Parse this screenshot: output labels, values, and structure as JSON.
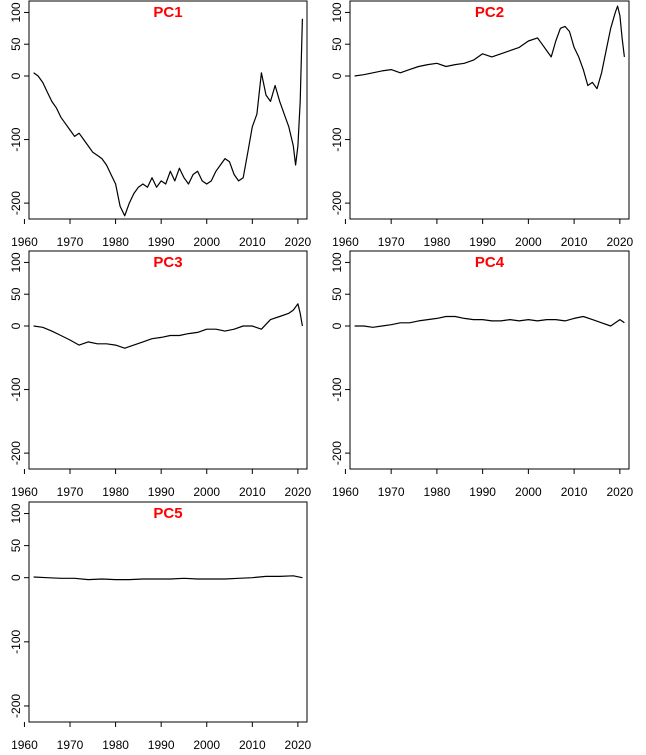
{
  "panel_title_color": "#ff0000",
  "line_color": "#000000",
  "chart_data": [
    {
      "type": "line",
      "title": "PC1",
      "xlabel": "",
      "ylabel": "",
      "xlim": [
        1961,
        2022
      ],
      "ylim": [
        -225,
        118
      ],
      "xticks": [
        1960,
        1970,
        1980,
        1990,
        2000,
        2010,
        2020
      ],
      "yticks": [
        100,
        50,
        0,
        -100,
        -200
      ],
      "grid": false,
      "series": [
        {
          "x": [
            1962,
            1963,
            1964,
            1965,
            1966,
            1967,
            1968,
            1969,
            1970,
            1971,
            1972,
            1973,
            1974,
            1975,
            1976,
            1977,
            1978,
            1979,
            1980,
            1981,
            1982,
            1983,
            1984,
            1985,
            1986,
            1987,
            1988,
            1989,
            1990,
            1991,
            1992,
            1993,
            1994,
            1995,
            1996,
            1997,
            1998,
            1999,
            2000,
            2001,
            2002,
            2003,
            2004,
            2005,
            2006,
            2007,
            2008,
            2009,
            2010,
            2011,
            2012,
            2013,
            2014,
            2015,
            2016,
            2017,
            2018,
            2019,
            2019.5,
            2020,
            2020.5,
            2021
          ],
          "y": [
            5,
            0,
            -10,
            -25,
            -40,
            -50,
            -65,
            -75,
            -85,
            -95,
            -90,
            -100,
            -110,
            -120,
            -125,
            -130,
            -140,
            -155,
            -170,
            -205,
            -220,
            -200,
            -185,
            -175,
            -170,
            -175,
            -160,
            -175,
            -165,
            -170,
            -150,
            -165,
            -145,
            -160,
            -170,
            -155,
            -150,
            -165,
            -170,
            -165,
            -150,
            -140,
            -130,
            -135,
            -155,
            -165,
            -160,
            -120,
            -80,
            -60,
            5,
            -30,
            -40,
            -15,
            -40,
            -60,
            -80,
            -110,
            -140,
            -110,
            -40,
            90
          ]
        }
      ]
    },
    {
      "type": "line",
      "title": "PC2",
      "xlabel": "",
      "ylabel": "",
      "xlim": [
        1961,
        2022
      ],
      "ylim": [
        -225,
        118
      ],
      "xticks": [
        1960,
        1970,
        1980,
        1990,
        2000,
        2010,
        2020
      ],
      "yticks": [
        100,
        50,
        0,
        -100,
        -200
      ],
      "grid": false,
      "series": [
        {
          "x": [
            1962,
            1964,
            1966,
            1968,
            1970,
            1972,
            1974,
            1976,
            1978,
            1980,
            1982,
            1984,
            1986,
            1988,
            1990,
            1992,
            1994,
            1996,
            1998,
            2000,
            2002,
            2003,
            2004,
            2005,
            2006,
            2007,
            2008,
            2009,
            2010,
            2011,
            2012,
            2013,
            2014,
            2015,
            2016,
            2017,
            2018,
            2019,
            2019.5,
            2020,
            2020.5,
            2021
          ],
          "y": [
            0,
            2,
            5,
            8,
            10,
            5,
            10,
            15,
            18,
            20,
            15,
            18,
            20,
            25,
            35,
            30,
            35,
            40,
            45,
            55,
            60,
            50,
            40,
            30,
            55,
            75,
            78,
            70,
            45,
            30,
            10,
            -15,
            -10,
            -20,
            5,
            40,
            75,
            100,
            110,
            95,
            60,
            30
          ]
        }
      ]
    },
    {
      "type": "line",
      "title": "PC3",
      "xlabel": "",
      "ylabel": "",
      "xlim": [
        1961,
        2022
      ],
      "ylim": [
        -225,
        118
      ],
      "xticks": [
        1960,
        1970,
        1980,
        1990,
        2000,
        2010,
        2020
      ],
      "yticks": [
        100,
        50,
        0,
        -100,
        -200
      ],
      "grid": false,
      "series": [
        {
          "x": [
            1962,
            1964,
            1966,
            1968,
            1970,
            1972,
            1974,
            1976,
            1978,
            1980,
            1982,
            1984,
            1986,
            1988,
            1990,
            1992,
            1994,
            1996,
            1998,
            2000,
            2002,
            2004,
            2006,
            2008,
            2010,
            2012,
            2014,
            2016,
            2018,
            2019,
            2020,
            2020.5,
            2021
          ],
          "y": [
            0,
            -2,
            -8,
            -15,
            -22,
            -30,
            -25,
            -28,
            -28,
            -30,
            -35,
            -30,
            -25,
            -20,
            -18,
            -15,
            -15,
            -12,
            -10,
            -5,
            -5,
            -8,
            -5,
            0,
            0,
            -5,
            10,
            15,
            20,
            25,
            35,
            20,
            0
          ]
        }
      ]
    },
    {
      "type": "line",
      "title": "PC4",
      "xlabel": "",
      "ylabel": "",
      "xlim": [
        1961,
        2022
      ],
      "ylim": [
        -225,
        118
      ],
      "xticks": [
        1960,
        1970,
        1980,
        1990,
        2000,
        2010,
        2020
      ],
      "yticks": [
        100,
        50,
        0,
        -100,
        -200
      ],
      "grid": false,
      "series": [
        {
          "x": [
            1962,
            1964,
            1966,
            1968,
            1970,
            1972,
            1974,
            1976,
            1978,
            1980,
            1982,
            1984,
            1986,
            1988,
            1990,
            1992,
            1994,
            1996,
            1998,
            2000,
            2002,
            2004,
            2006,
            2008,
            2010,
            2012,
            2014,
            2016,
            2018,
            2020,
            2021
          ],
          "y": [
            0,
            0,
            -2,
            0,
            2,
            5,
            5,
            8,
            10,
            12,
            15,
            15,
            12,
            10,
            10,
            8,
            8,
            10,
            8,
            10,
            8,
            10,
            10,
            8,
            12,
            15,
            10,
            5,
            0,
            10,
            5
          ]
        }
      ]
    },
    {
      "type": "line",
      "title": "PC5",
      "xlabel": "",
      "ylabel": "",
      "xlim": [
        1961,
        2022
      ],
      "ylim": [
        -225,
        118
      ],
      "xticks": [
        1960,
        1970,
        1980,
        1990,
        2000,
        2010,
        2020
      ],
      "yticks": [
        100,
        50,
        0,
        -100,
        -200
      ],
      "grid": false,
      "series": [
        {
          "x": [
            1962,
            1965,
            1968,
            1971,
            1974,
            1977,
            1980,
            1983,
            1986,
            1989,
            1992,
            1995,
            1998,
            2001,
            2004,
            2007,
            2010,
            2013,
            2016,
            2019,
            2021
          ],
          "y": [
            1,
            0,
            -1,
            -1,
            -3,
            -2,
            -3,
            -3,
            -2,
            -2,
            -2,
            -1,
            -2,
            -2,
            -2,
            -1,
            0,
            2,
            2,
            3,
            0
          ]
        }
      ]
    }
  ]
}
